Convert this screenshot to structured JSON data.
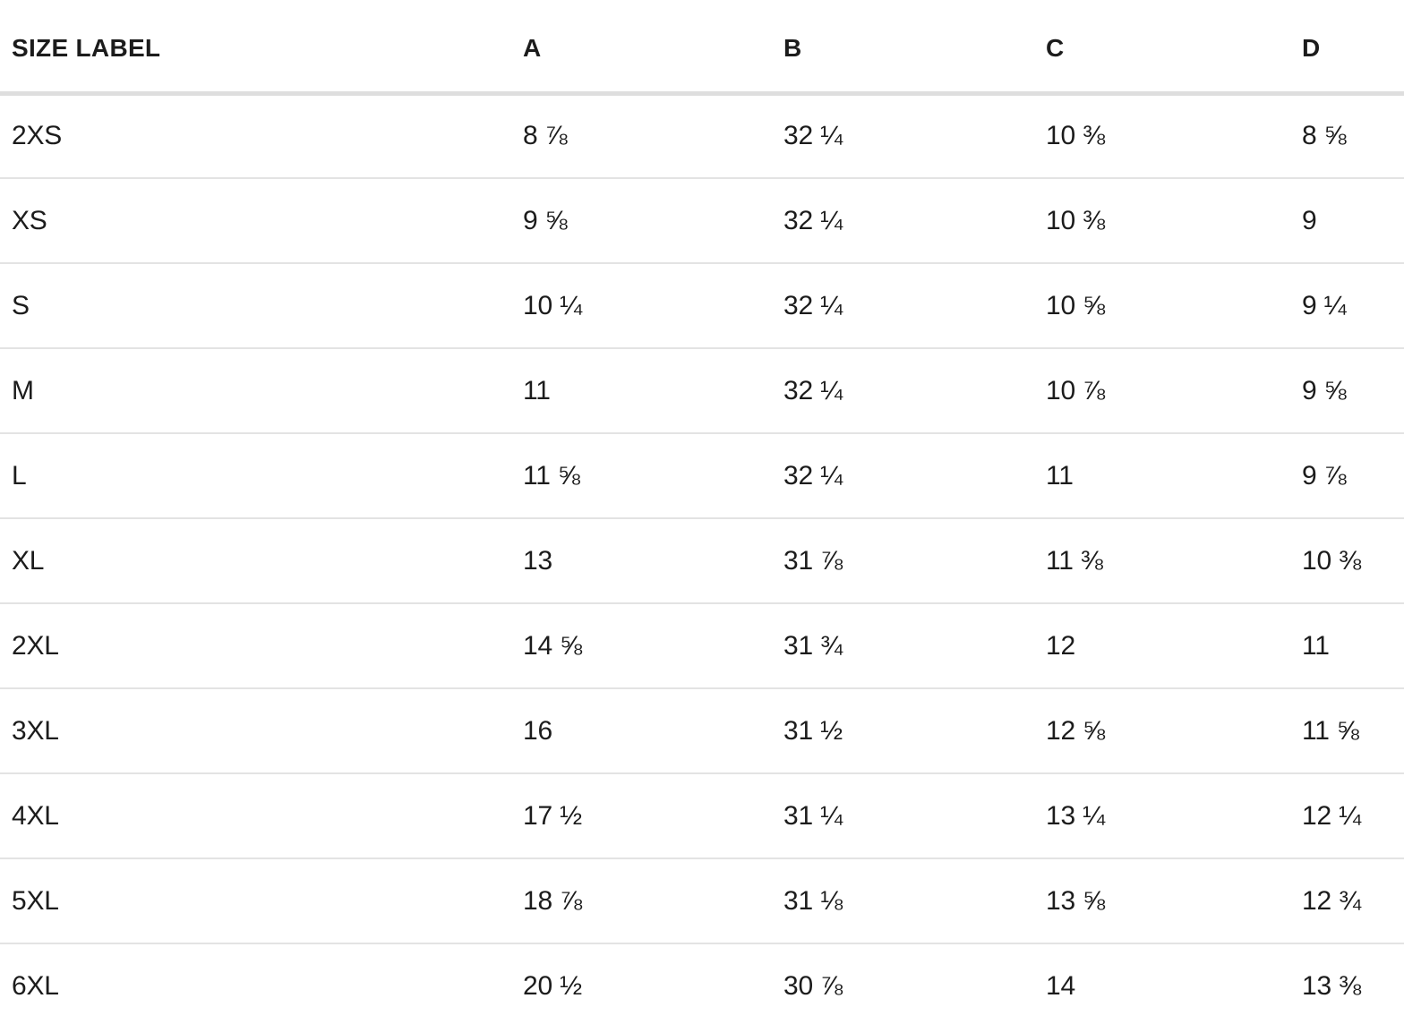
{
  "table": {
    "columns": [
      {
        "key": "size",
        "label": "SIZE LABEL"
      },
      {
        "key": "a",
        "label": "A"
      },
      {
        "key": "b",
        "label": "B"
      },
      {
        "key": "c",
        "label": "C"
      },
      {
        "key": "d",
        "label": "D"
      }
    ],
    "rows": [
      {
        "size": "2XS",
        "a": "8 ⅞",
        "b": "32 ¼",
        "c": "10 ⅜",
        "d": "8 ⅝"
      },
      {
        "size": "XS",
        "a": "9 ⅝",
        "b": "32 ¼",
        "c": "10 ⅜",
        "d": "9"
      },
      {
        "size": "S",
        "a": "10 ¼",
        "b": "32 ¼",
        "c": "10 ⅝",
        "d": "9 ¼"
      },
      {
        "size": "M",
        "a": "11",
        "b": "32 ¼",
        "c": "10 ⅞",
        "d": "9 ⅝"
      },
      {
        "size": "L",
        "a": "11 ⅝",
        "b": "32 ¼",
        "c": "11",
        "d": "9 ⅞"
      },
      {
        "size": "XL",
        "a": "13",
        "b": "31 ⅞",
        "c": "11 ⅜",
        "d": "10 ⅜"
      },
      {
        "size": "2XL",
        "a": "14 ⅝",
        "b": "31 ¾",
        "c": "12",
        "d": "11"
      },
      {
        "size": "3XL",
        "a": "16",
        "b": "31 ½",
        "c": "12 ⅝",
        "d": "11 ⅝"
      },
      {
        "size": "4XL",
        "a": "17 ½",
        "b": "31 ¼",
        "c": "13 ¼",
        "d": "12 ¼"
      },
      {
        "size": "5XL",
        "a": "18 ⅞",
        "b": "31 ⅛",
        "c": "13 ⅝",
        "d": "12 ¾"
      },
      {
        "size": "6XL",
        "a": "20 ½",
        "b": "30 ⅞",
        "c": "14",
        "d": "13 ⅜"
      }
    ]
  },
  "colors": {
    "background": "#ffffff",
    "text": "#1c1c1c",
    "row_divider": "#e3e3e3",
    "header_divider": "#dedede"
  }
}
